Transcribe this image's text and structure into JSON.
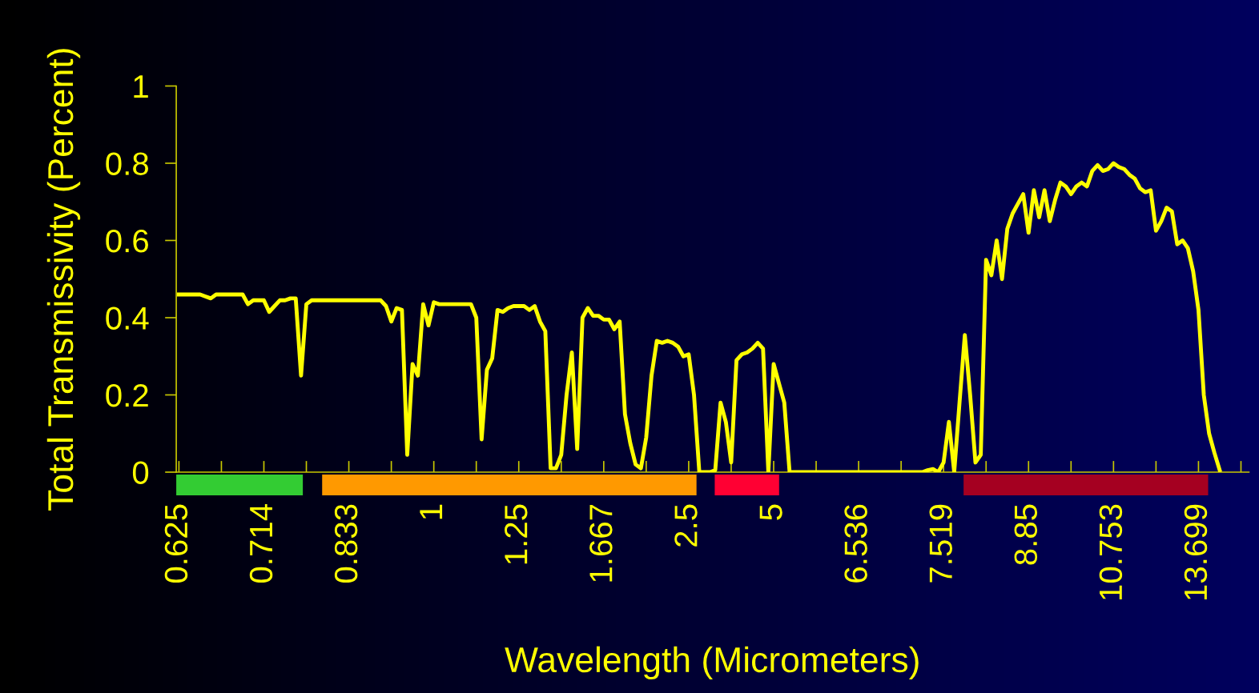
{
  "chart_data": {
    "type": "line",
    "xlabel": "Wavelength (Micrometers)",
    "ylabel": "Total Transmissivity (Percent)",
    "categories": [
      "0.625",
      null,
      null,
      null,
      null,
      null,
      null,
      null,
      null,
      null,
      null,
      null,
      null,
      null,
      null,
      null,
      "0.714",
      null,
      null,
      null,
      null,
      null,
      null,
      null,
      null,
      null,
      null,
      null,
      null,
      null,
      null,
      null,
      "0.833",
      null,
      null,
      null,
      null,
      null,
      null,
      null,
      null,
      null,
      null,
      null,
      null,
      null,
      null,
      null,
      "1",
      null,
      null,
      null,
      null,
      null,
      null,
      null,
      null,
      null,
      null,
      null,
      null,
      null,
      null,
      null,
      "1.25",
      null,
      null,
      null,
      null,
      null,
      null,
      null,
      null,
      null,
      null,
      null,
      null,
      null,
      null,
      null,
      "1.667",
      null,
      null,
      null,
      null,
      null,
      null,
      null,
      null,
      null,
      null,
      null,
      null,
      null,
      null,
      null,
      "2.5",
      null,
      null,
      null,
      null,
      null,
      null,
      null,
      null,
      null,
      null,
      null,
      null,
      null,
      null,
      null,
      "5",
      null,
      null,
      null,
      null,
      null,
      null,
      null,
      null,
      null,
      null,
      null,
      null,
      null,
      null,
      null,
      "6.536",
      null,
      null,
      null,
      null,
      null,
      null,
      null,
      null,
      null,
      null,
      null,
      null,
      null,
      null,
      null,
      "7.519",
      null,
      null,
      null,
      null,
      null,
      null,
      null,
      null,
      null,
      null,
      null,
      null,
      null,
      null,
      null,
      "8.85",
      null,
      null,
      null,
      null,
      null,
      null,
      null,
      null,
      null,
      null,
      null,
      null,
      null,
      null,
      null,
      "10.753",
      null,
      null,
      null,
      null,
      null,
      null,
      null,
      null,
      null,
      null,
      null,
      null,
      null,
      null,
      null,
      "13.699",
      null,
      null,
      null,
      null,
      null,
      null,
      null,
      null,
      null
    ],
    "series": [
      {
        "color": "#ffff00",
        "values": [
          0.46,
          0.46,
          0.46,
          0.46,
          0.46,
          0.455,
          0.45,
          0.46,
          0.46,
          0.46,
          0.46,
          0.46,
          0.46,
          0.435,
          0.445,
          0.445,
          0.445,
          0.415,
          0.43,
          0.445,
          0.445,
          0.45,
          0.45,
          0.25,
          0.435,
          0.445,
          0.445,
          0.445,
          0.445,
          0.445,
          0.445,
          0.445,
          0.445,
          0.445,
          0.445,
          0.445,
          0.445,
          0.445,
          0.445,
          0.43,
          0.39,
          0.425,
          0.42,
          0.045,
          0.28,
          0.25,
          0.435,
          0.38,
          0.44,
          0.435,
          0.435,
          0.435,
          0.435,
          0.435,
          0.435,
          0.435,
          0.4,
          0.085,
          0.265,
          0.295,
          0.42,
          0.415,
          0.425,
          0.43,
          0.43,
          0.43,
          0.42,
          0.43,
          0.39,
          0.365,
          0.01,
          0.01,
          0.045,
          0.2,
          0.31,
          0.06,
          0.4,
          0.425,
          0.405,
          0.405,
          0.395,
          0.395,
          0.37,
          0.39,
          0.15,
          0.075,
          0.02,
          0.01,
          0.09,
          0.25,
          0.34,
          0.335,
          0.34,
          0.335,
          0.325,
          0.3,
          0.305,
          0.2,
          0,
          0,
          0,
          0.005,
          0.18,
          0.13,
          0.025,
          0.29,
          0.305,
          0.31,
          0.32,
          0.335,
          0.32,
          0,
          0.28,
          0.23,
          0.18,
          0,
          0,
          0,
          0,
          0,
          0,
          0,
          0,
          0,
          0,
          0,
          0,
          0,
          0,
          0,
          0,
          0,
          0,
          0,
          0,
          0,
          0,
          0,
          0,
          0,
          0,
          0.005,
          0.008,
          0,
          0.025,
          0.13,
          0,
          0.18,
          0.355,
          0.2,
          0.025,
          0.045,
          0.55,
          0.51,
          0.6,
          0.5,
          0.63,
          0.67,
          0.695,
          0.72,
          0.62,
          0.73,
          0.66,
          0.73,
          0.65,
          0.705,
          0.75,
          0.74,
          0.72,
          0.74,
          0.75,
          0.74,
          0.78,
          0.795,
          0.78,
          0.785,
          0.8,
          0.79,
          0.785,
          0.77,
          0.76,
          0.735,
          0.725,
          0.73,
          0.625,
          0.65,
          0.685,
          0.675,
          0.59,
          0.6,
          0.58,
          0.52,
          0.42,
          0.2,
          0.1,
          0.05,
          0.005,
          null,
          null,
          null,
          null,
          null
        ]
      }
    ],
    "ylim": [
      0,
      1
    ],
    "yticks": [
      0,
      0.2,
      0.4,
      0.6,
      0.8,
      1
    ],
    "grid": false,
    "marker": "none",
    "line_style": "solid"
  }
}
